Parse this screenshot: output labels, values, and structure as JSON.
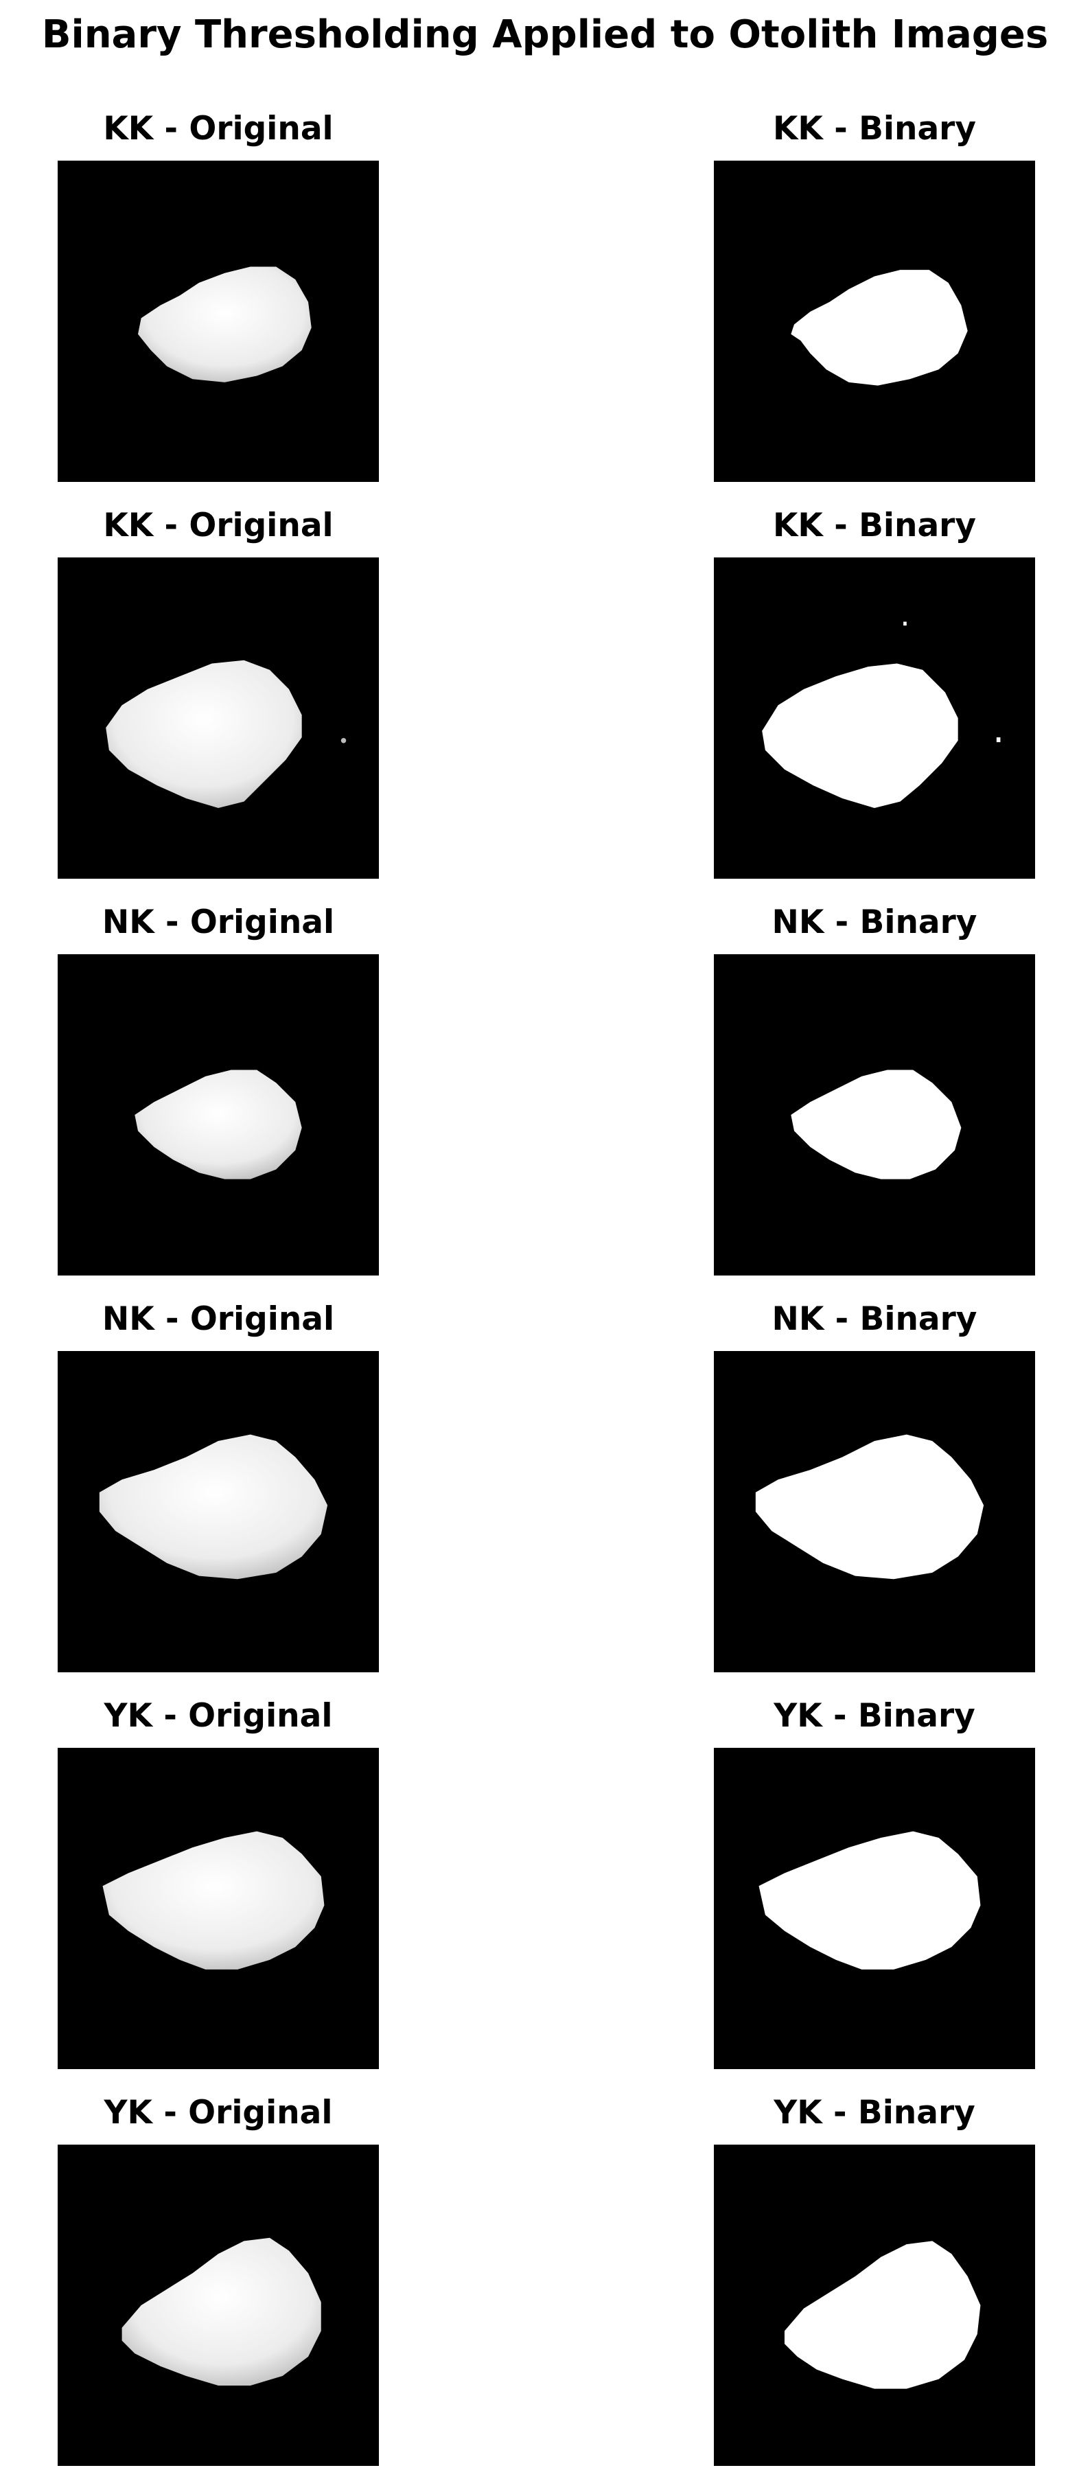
{
  "figure": {
    "title": "Binary Thresholding Applied to Otolith Images"
  },
  "rows": [
    {
      "original_title": "KK - Original",
      "binary_title": "KK - Binary"
    },
    {
      "original_title": "KK - Original",
      "binary_title": "KK - Binary"
    },
    {
      "original_title": "NK - Original",
      "binary_title": "NK - Binary"
    },
    {
      "original_title": "NK - Original",
      "binary_title": "NK - Binary"
    },
    {
      "original_title": "YK - Original",
      "binary_title": "YK - Binary"
    },
    {
      "original_title": "YK - Original",
      "binary_title": "YK - Binary"
    }
  ],
  "colors": {
    "background": "#000000",
    "otolith_original": "#f2f2f2",
    "otolith_binary": "#ffffff"
  }
}
